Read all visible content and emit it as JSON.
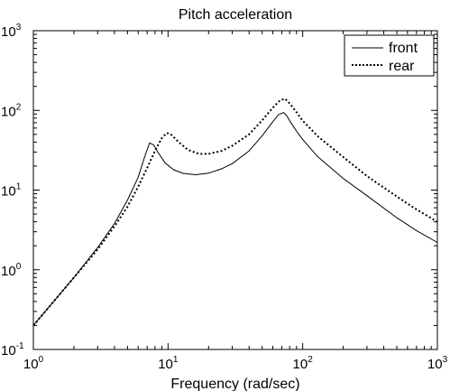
{
  "chart_data": {
    "type": "line",
    "title": "Pitch acceleration",
    "xlabel": "Frequency (rad/sec)",
    "ylabel": "",
    "xscale": "log",
    "yscale": "log",
    "xlim": [
      1,
      1000
    ],
    "ylim": [
      0.1,
      1000
    ],
    "grid": false,
    "legend_position": "top-right",
    "x_ticks": [
      {
        "base": "10",
        "exp": "0",
        "value": 1
      },
      {
        "base": "10",
        "exp": "1",
        "value": 10
      },
      {
        "base": "10",
        "exp": "2",
        "value": 100
      },
      {
        "base": "10",
        "exp": "3",
        "value": 1000
      }
    ],
    "y_ticks": [
      {
        "base": "10",
        "exp": "-1",
        "value": 0.1
      },
      {
        "base": "10",
        "exp": "0",
        "value": 1
      },
      {
        "base": "10",
        "exp": "1",
        "value": 10
      },
      {
        "base": "10",
        "exp": "2",
        "value": 100
      },
      {
        "base": "10",
        "exp": "3",
        "value": 1000
      }
    ],
    "series": [
      {
        "name": "front",
        "style": "solid",
        "color": "#000000",
        "x": [
          1,
          1.5,
          2,
          3,
          4,
          5,
          6,
          6.8,
          7.3,
          7.8,
          8.5,
          9.5,
          11,
          13,
          16,
          20,
          25,
          30,
          40,
          50,
          60,
          66,
          72,
          76,
          80,
          90,
          100,
          130,
          200,
          300,
          500,
          700,
          1000
        ],
        "y": [
          0.2,
          0.45,
          0.8,
          1.9,
          3.8,
          7.5,
          14.5,
          28,
          39,
          37,
          29,
          22,
          18,
          16.2,
          15.6,
          16.3,
          18.5,
          21.5,
          31,
          48,
          72,
          88,
          94,
          86,
          74,
          55,
          43,
          26,
          14,
          8.5,
          4.5,
          3.1,
          2.2
        ]
      },
      {
        "name": "rear",
        "style": "dotted",
        "color": "#000000",
        "x": [
          1,
          1.5,
          2,
          3,
          4,
          5,
          6,
          7,
          8,
          9,
          9.8,
          10.5,
          12,
          14,
          17,
          20,
          25,
          30,
          40,
          50,
          60,
          68,
          74,
          80,
          90,
          100,
          130,
          200,
          300,
          500,
          700,
          1000
        ],
        "y": [
          0.2,
          0.45,
          0.8,
          1.8,
          3.5,
          6.2,
          11,
          19,
          31,
          45,
          52,
          50,
          40,
          32,
          28.5,
          28.5,
          31,
          36,
          50,
          75,
          108,
          134,
          140,
          122,
          95,
          74,
          47,
          26,
          15,
          8.3,
          5.7,
          4
        ]
      }
    ]
  }
}
